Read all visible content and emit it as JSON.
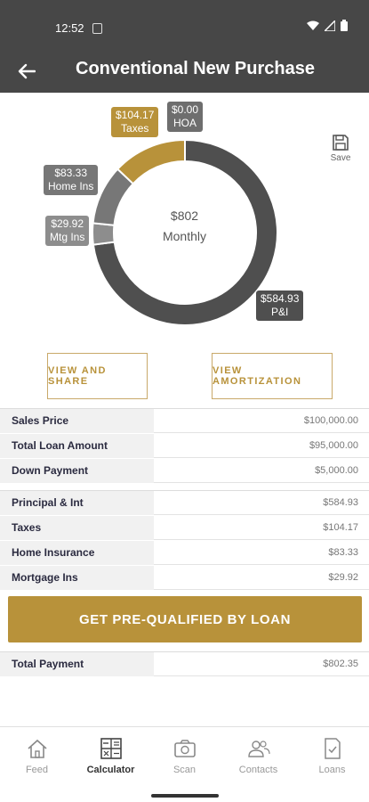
{
  "status": {
    "time": "12:52"
  },
  "app_bar": {
    "title": "Conventional New Purchase"
  },
  "chart_data": {
    "type": "pie",
    "style": "donut",
    "center_value": "$802",
    "center_label": "Monthly",
    "slices": [
      {
        "label": "P&I",
        "value": 584.93,
        "display": "$584.93",
        "color": "#4f4f4f"
      },
      {
        "label": "Mtg Ins",
        "value": 29.92,
        "display": "$29.92",
        "color": "#8d8d8d"
      },
      {
        "label": "Home Ins",
        "value": 83.33,
        "display": "$83.33",
        "color": "#777777"
      },
      {
        "label": "Taxes",
        "value": 104.17,
        "display": "$104.17",
        "color": "#b8923a"
      },
      {
        "label": "HOA",
        "value": 0.0,
        "display": "$0.00",
        "color": "#6e6e6e"
      }
    ]
  },
  "save": {
    "label": "Save"
  },
  "buttons": {
    "view_share": "VIEW AND SHARE",
    "view_amortization": "VIEW AMORTIZATION",
    "cta": "GET PRE-QUALIFIED BY LOAN"
  },
  "loan_rows": [
    {
      "label": "Sales Price",
      "value": "$100,000.00"
    },
    {
      "label": "Total Loan Amount",
      "value": "$95,000.00"
    },
    {
      "label": "Down Payment",
      "value": "$5,000.00"
    }
  ],
  "payment_rows": [
    {
      "label": "Principal & Int",
      "value": "$584.93"
    },
    {
      "label": "Taxes",
      "value": "$104.17"
    },
    {
      "label": "Home Insurance",
      "value": "$83.33"
    },
    {
      "label": "Mortgage Ins",
      "value": "$29.92"
    }
  ],
  "total_row": {
    "label": "Total Payment",
    "value": "$802.35"
  },
  "nav": {
    "items": [
      {
        "label": "Feed",
        "icon": "home-icon"
      },
      {
        "label": "Calculator",
        "icon": "calculator-icon"
      },
      {
        "label": "Scan",
        "icon": "camera-icon"
      },
      {
        "label": "Contacts",
        "icon": "contacts-icon"
      },
      {
        "label": "Loans",
        "icon": "document-check-icon"
      }
    ],
    "active": "Calculator"
  },
  "colors": {
    "header": "#474747",
    "accent": "#b8923a"
  }
}
